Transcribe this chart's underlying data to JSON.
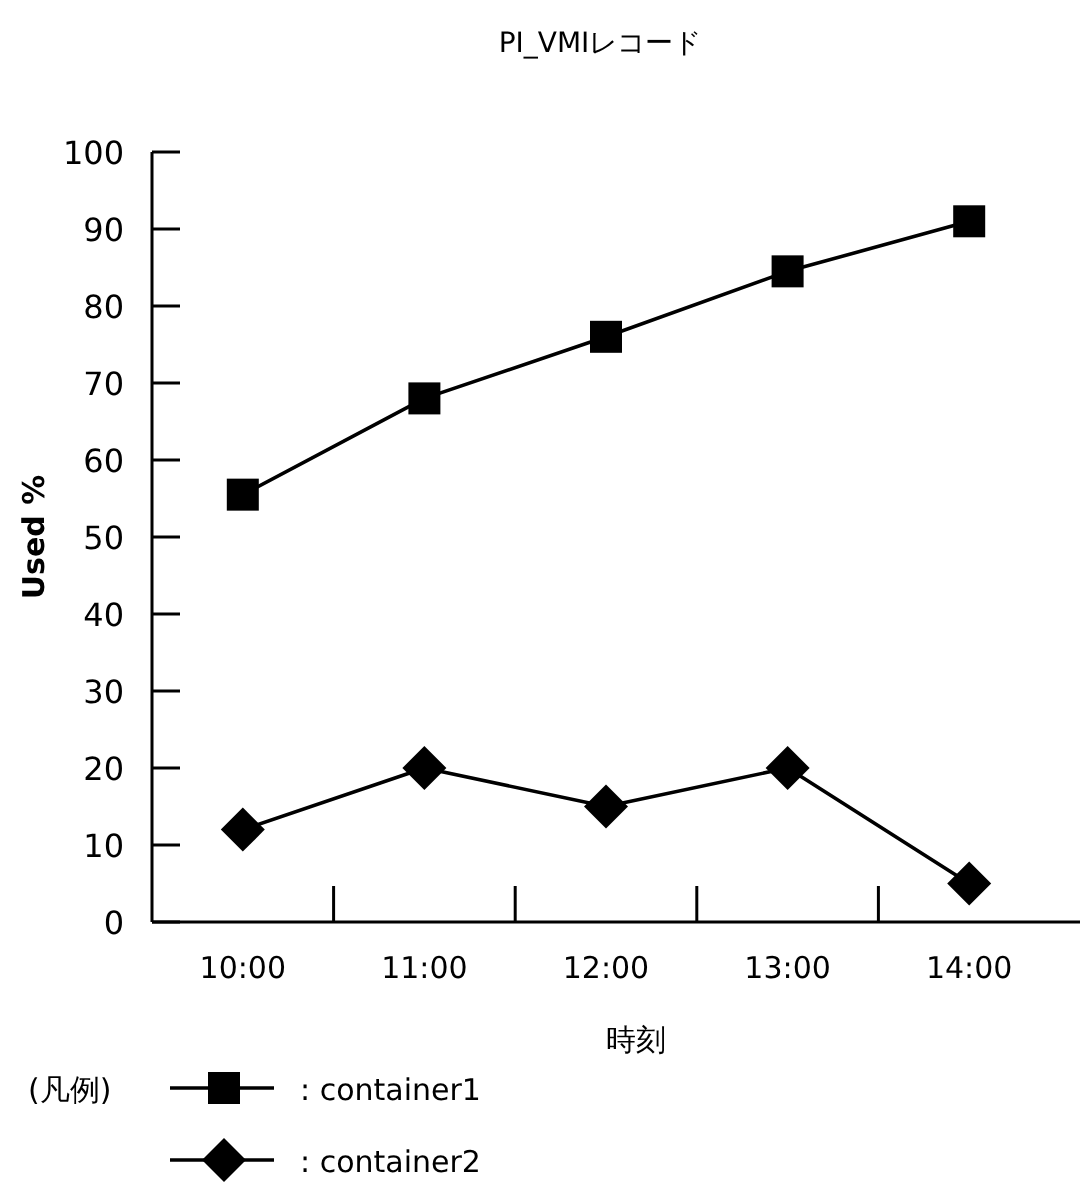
{
  "chart_data": {
    "type": "line",
    "title": "PI_VMIレコード",
    "xlabel": "時刻",
    "ylabel": "Used %",
    "legend_title": "(凡例)",
    "categories": [
      "10:00",
      "11:00",
      "12:00",
      "13:00",
      "14:00"
    ],
    "series": [
      {
        "name": ": container1",
        "color": "#000000",
        "marker": "square",
        "values": [
          55.5,
          68,
          76,
          84.5,
          91
        ]
      },
      {
        "name": ": container2",
        "color": "#000000",
        "marker": "diamond",
        "values": [
          12,
          20,
          15,
          20,
          5
        ]
      }
    ],
    "ylim": [
      0,
      100
    ],
    "yticks": [
      0,
      10,
      20,
      30,
      40,
      50,
      60,
      70,
      80,
      90,
      100
    ],
    "grid": false,
    "legend": "bottom left",
    "line_style": "solid"
  }
}
